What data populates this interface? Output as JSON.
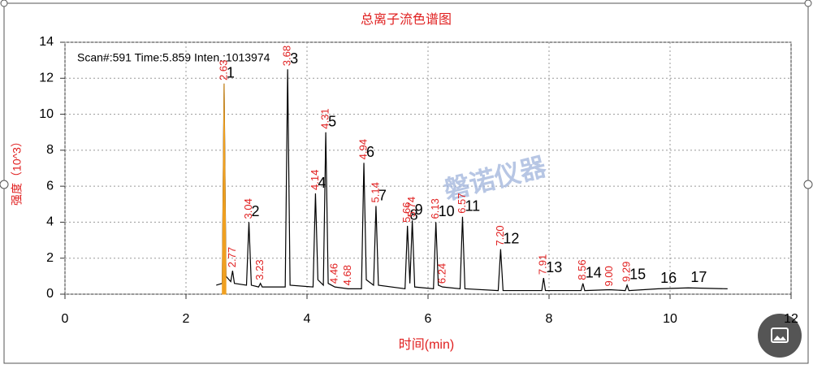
{
  "chart_data": {
    "type": "line",
    "title": "总离子流色谱图",
    "x_label": "时间(min)",
    "y_label": "强度（10^3）",
    "annotation": "Scan#:591  Time:5.859  Inten.:1013974",
    "watermark": "磐诺仪器",
    "xlim": [
      0,
      12
    ],
    "xticks": [
      0,
      2,
      4,
      6,
      8,
      10,
      12
    ],
    "ylim": [
      0,
      14
    ],
    "yticks": [
      0,
      2,
      4,
      6,
      8,
      10,
      12,
      14
    ],
    "grid": true,
    "series": [
      {
        "color": "#000000",
        "x": [
          2.5,
          2.6,
          2.63,
          2.66,
          2.74,
          2.77,
          2.8,
          3.0,
          3.04,
          3.08,
          3.2,
          3.23,
          3.26,
          3.64,
          3.68,
          3.72,
          4.1,
          4.14,
          4.18,
          4.27,
          4.31,
          4.35,
          4.46,
          4.68,
          4.9,
          4.94,
          4.98,
          5.1,
          5.14,
          5.18,
          5.62,
          5.66,
          5.7,
          5.74,
          5.78,
          6.09,
          6.13,
          6.17,
          6.24,
          6.53,
          6.57,
          6.61,
          7.16,
          7.2,
          7.24,
          7.88,
          7.91,
          7.94,
          8.53,
          8.56,
          8.59,
          9.0,
          9.26,
          9.29,
          9.32,
          9.8,
          10.3,
          10.95
        ],
        "values": [
          0.5,
          0.6,
          11.7,
          1.0,
          0.7,
          1.3,
          0.6,
          0.5,
          4.0,
          0.5,
          0.4,
          0.6,
          0.4,
          0.4,
          12.5,
          0.5,
          0.4,
          5.6,
          0.8,
          0.5,
          9.0,
          0.6,
          0.4,
          0.3,
          0.3,
          7.3,
          0.8,
          0.5,
          4.9,
          0.5,
          0.3,
          3.8,
          0.6,
          4.1,
          0.4,
          0.3,
          4.0,
          0.5,
          0.4,
          0.3,
          4.3,
          0.3,
          0.2,
          2.5,
          0.2,
          0.2,
          0.9,
          0.2,
          0.2,
          0.6,
          0.2,
          0.25,
          0.2,
          0.5,
          0.2,
          0.3,
          0.35,
          0.3
        ]
      },
      {
        "type": "area",
        "color": "#f0a020",
        "x": [
          2.6,
          2.63,
          2.66
        ],
        "values": [
          0.6,
          11.7,
          1.0
        ]
      }
    ],
    "peaks": [
      {
        "number": "1",
        "rt": "2.63",
        "x": 2.63,
        "y": 11.7
      },
      {
        "number": null,
        "rt": "2.77",
        "x": 2.77,
        "y": 1.3
      },
      {
        "number": "2",
        "rt": "3.04",
        "x": 3.04,
        "y": 4.0
      },
      {
        "number": null,
        "rt": "3.23",
        "x": 3.23,
        "y": 0.6
      },
      {
        "number": "3",
        "rt": "3.68",
        "x": 3.68,
        "y": 12.5
      },
      {
        "number": "4",
        "rt": "4.14",
        "x": 4.14,
        "y": 5.6
      },
      {
        "number": "5",
        "rt": "4.31",
        "x": 4.31,
        "y": 9.0
      },
      {
        "number": null,
        "rt": "4.46",
        "x": 4.46,
        "y": 0.4
      },
      {
        "number": null,
        "rt": "4.68",
        "x": 4.68,
        "y": 0.3
      },
      {
        "number": "6",
        "rt": "4.94",
        "x": 4.94,
        "y": 7.3
      },
      {
        "number": "7",
        "rt": "5.14",
        "x": 5.14,
        "y": 4.9
      },
      {
        "number": "8",
        "rt": "5.66",
        "x": 5.66,
        "y": 3.8
      },
      {
        "number": "9",
        "rt": "5.74",
        "x": 5.74,
        "y": 4.1
      },
      {
        "number": "10",
        "rt": "6.13",
        "x": 6.13,
        "y": 4.0
      },
      {
        "number": null,
        "rt": "6.24",
        "x": 6.24,
        "y": 0.4
      },
      {
        "number": "11",
        "rt": "6.57",
        "x": 6.57,
        "y": 4.3
      },
      {
        "number": "12",
        "rt": "7.20",
        "x": 7.2,
        "y": 2.5
      },
      {
        "number": "13",
        "rt": "7.91",
        "x": 7.91,
        "y": 0.9
      },
      {
        "number": "14",
        "rt": "8.56",
        "x": 8.56,
        "y": 0.6
      },
      {
        "number": null,
        "rt": "9.00",
        "x": 9.0,
        "y": 0.25
      },
      {
        "number": "15",
        "rt": "9.29",
        "x": 9.29,
        "y": 0.5
      },
      {
        "number": "16",
        "rt": null,
        "x": 9.8,
        "y": 0.3
      },
      {
        "number": "17",
        "rt": null,
        "x": 10.3,
        "y": 0.35
      }
    ]
  }
}
